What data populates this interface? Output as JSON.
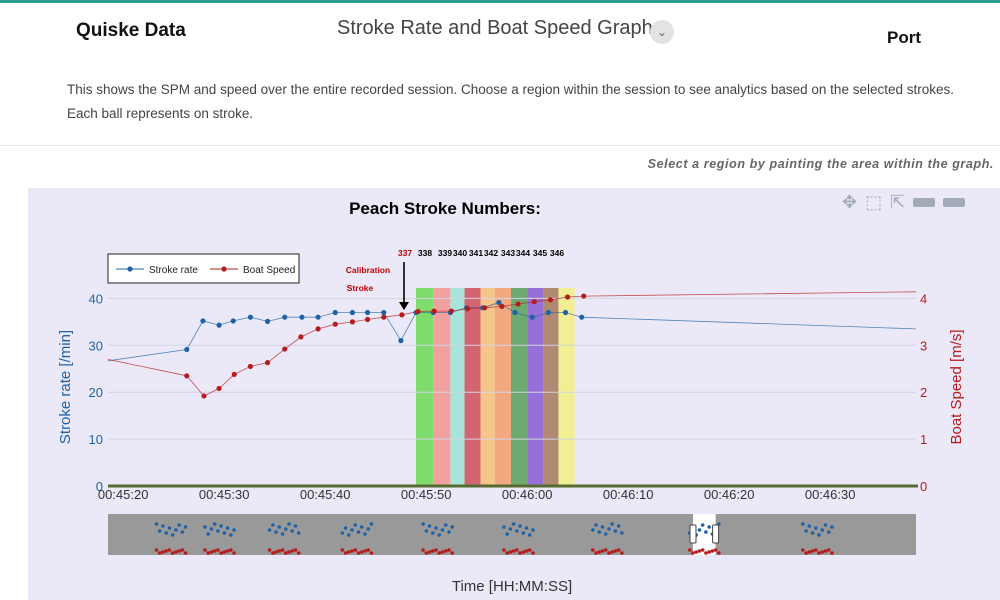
{
  "header": {
    "brand": "Quiske Data",
    "graph_title": "Stroke Rate and Boat Speed Graph",
    "side_label": "Port"
  },
  "description": "This shows the SPM and speed over the entire recorded session. Choose a region within the session to see analytics based on the selected strokes. Each ball represents on stroke.",
  "hint": "Select a region by painting the area within the graph.",
  "modebar": [
    "pan-icon",
    "box-select-icon",
    "autoscale-icon",
    "spike-lines-icon",
    "compare-hover-icon"
  ],
  "chart_data": {
    "type": "line",
    "title": "Peach Stroke Numbers:",
    "xlabel": "Time [HH:MM:SS]",
    "ylabel": "Stroke rate [/min]",
    "y2label": "Boat Speed [m/s]",
    "x_ticks": [
      "00:45:20",
      "00:45:30",
      "00:45:40",
      "00:45:50",
      "00:46:00",
      "00:46:10",
      "00:46:20",
      "00:46:30"
    ],
    "x_range_seconds": [
      2718.5,
      2798.5
    ],
    "y_ticks": [
      0,
      10,
      20,
      30,
      40
    ],
    "y_range": [
      0,
      43.5
    ],
    "y2_ticks": [
      0,
      1,
      2,
      3,
      4
    ],
    "y2_range": [
      0,
      4.35
    ],
    "legend": {
      "position": "top-left",
      "entries": [
        "Stroke rate",
        "Boat Speed"
      ]
    },
    "series": [
      {
        "name": "Stroke rate",
        "axis": "left",
        "color": "#1f63a6",
        "x": [
          2718.5,
          2726.3,
          2727.9,
          2729.5,
          2730.9,
          2732.6,
          2734.3,
          2736.0,
          2737.7,
          2739.3,
          2741.0,
          2742.7,
          2744.2,
          2745.8,
          2747.5,
          2749.0,
          2750.7,
          2752.4,
          2754.0,
          2755.6,
          2757.2,
          2758.8,
          2760.5,
          2762.1,
          2763.8,
          2765.4,
          2798.5
        ],
        "y": [
          26.7,
          29.1,
          35.2,
          34.3,
          35.2,
          36.0,
          35.1,
          36.0,
          36.0,
          36.0,
          37.0,
          37.0,
          37.0,
          37.0,
          31.0,
          37.0,
          37.0,
          37.0,
          38.0,
          38.0,
          39.1,
          37.0,
          36.0,
          37.0,
          37.0,
          36.0,
          33.5
        ]
      },
      {
        "name": "Boat Speed",
        "axis": "right",
        "color": "#b71c1c",
        "x": [
          2718.5,
          2726.3,
          2728.0,
          2729.5,
          2731.0,
          2732.6,
          2734.3,
          2736.0,
          2737.6,
          2739.3,
          2741.0,
          2742.7,
          2744.2,
          2745.8,
          2747.6,
          2749.2,
          2750.8,
          2752.5,
          2754.1,
          2755.8,
          2757.5,
          2759.1,
          2760.7,
          2762.3,
          2764.0,
          2765.6,
          2798.5
        ],
        "y": [
          2.7,
          2.35,
          1.92,
          2.08,
          2.38,
          2.55,
          2.63,
          2.92,
          3.18,
          3.35,
          3.45,
          3.5,
          3.55,
          3.6,
          3.65,
          3.72,
          3.73,
          3.73,
          3.78,
          3.8,
          3.83,
          3.88,
          3.93,
          3.97,
          4.03,
          4.05,
          4.14
        ]
      }
    ],
    "stroke_numbers": [
      "337",
      "338",
      "339",
      "340",
      "341",
      "342",
      "343",
      "344",
      "345",
      "346"
    ],
    "stroke_bands": [
      {
        "start": 2749.0,
        "end": 2750.7,
        "color": "#7ddc6a"
      },
      {
        "start": 2750.7,
        "end": 2752.4,
        "color": "#f2a1a0"
      },
      {
        "start": 2752.4,
        "end": 2753.8,
        "color": "#a7e4da"
      },
      {
        "start": 2753.8,
        "end": 2755.4,
        "color": "#d4646f"
      },
      {
        "start": 2755.4,
        "end": 2756.8,
        "color": "#f6c589"
      },
      {
        "start": 2756.8,
        "end": 2758.4,
        "color": "#f3a97f"
      },
      {
        "start": 2758.4,
        "end": 2760.0,
        "color": "#6eaa70"
      },
      {
        "start": 2760.0,
        "end": 2761.6,
        "color": "#9670d8"
      },
      {
        "start": 2761.6,
        "end": 2763.1,
        "color": "#b08a72"
      },
      {
        "start": 2763.1,
        "end": 2764.7,
        "color": "#f1ee93"
      }
    ],
    "calibration_annotation": {
      "lines": [
        "Calibration",
        "Stroke"
      ],
      "x": 2747.5
    },
    "range_slider": {
      "selected_fraction": [
        0.724,
        0.752
      ]
    },
    "grid": true
  }
}
